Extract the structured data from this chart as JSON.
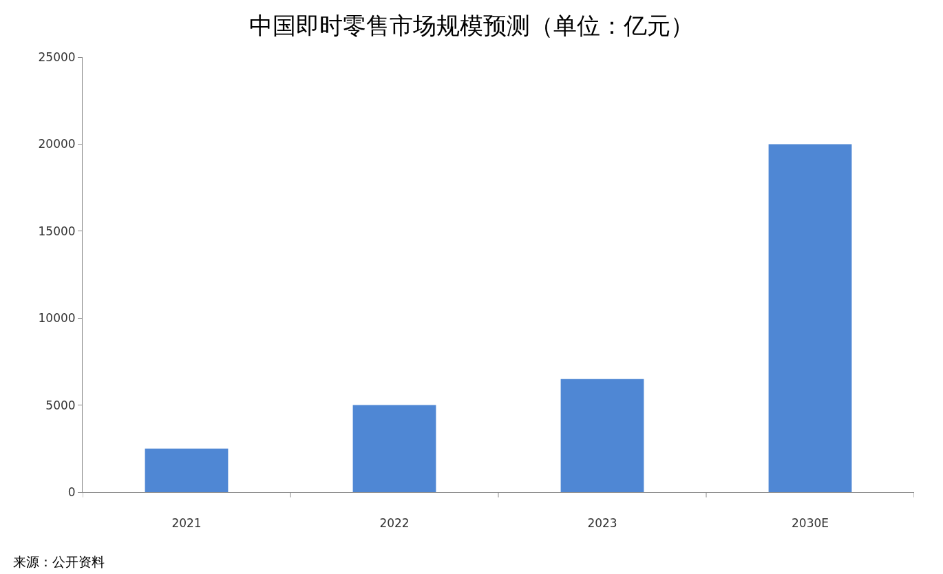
{
  "chart_data": {
    "type": "bar",
    "title": "中国即时零售市场规模预测（单位：亿元）",
    "categories": [
      "2021",
      "2022",
      "2023",
      "2030E"
    ],
    "values": [
      2500,
      5000,
      6500,
      20000
    ],
    "color": "#4f87d4",
    "ylim": [
      0,
      25000
    ],
    "yticks": [
      0,
      5000,
      10000,
      15000,
      20000,
      25000
    ],
    "grid": false,
    "annotations": [
      "来源：公开资料"
    ]
  }
}
